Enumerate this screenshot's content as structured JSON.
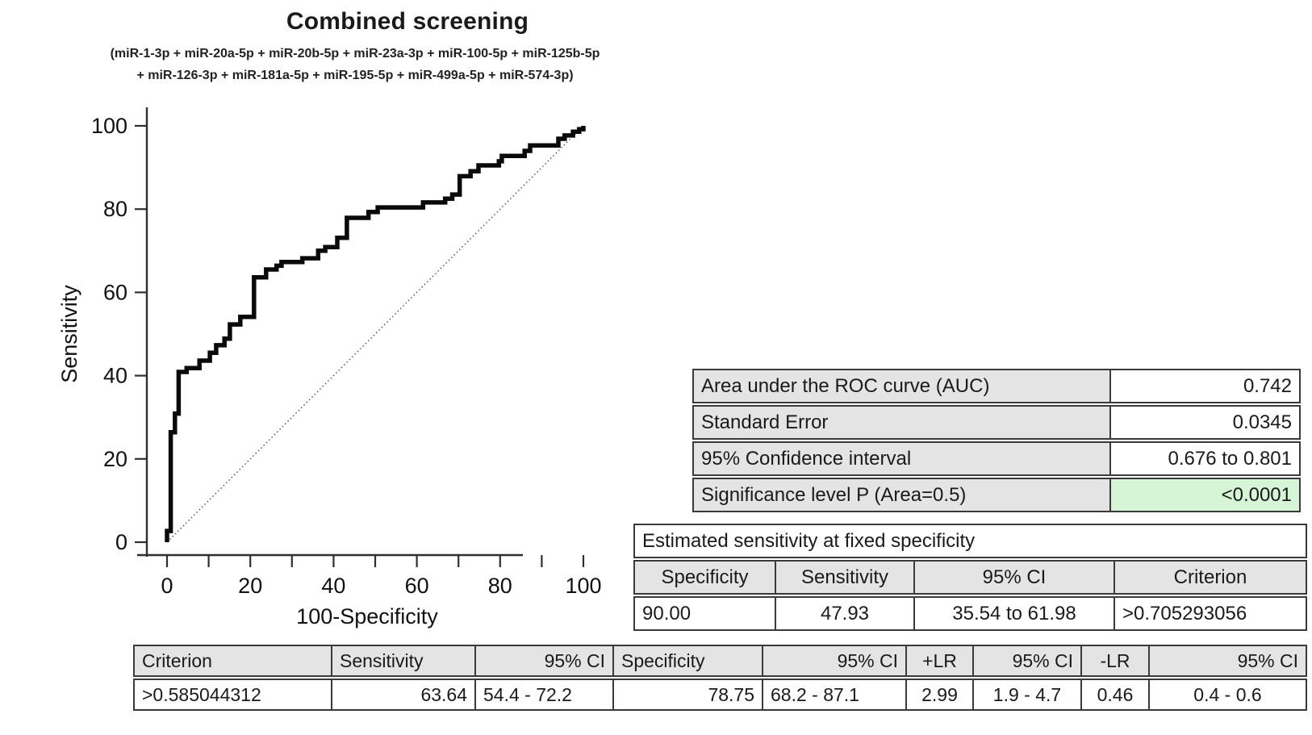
{
  "chart_data": {
    "type": "line",
    "title": "Combined screening",
    "subtitle_line1": "(miR-1-3p + miR-20a-5p + miR-20b-5p + miR-23a-3p + miR-100-5p + miR-125b-5p",
    "subtitle_line2": "+ miR-126-3p + miR-181a-5p + miR-195-5p + miR-499a-5p + miR-574-3p)",
    "xlabel": "100-Specificity",
    "ylabel": "Sensitivity",
    "xlim": [
      0,
      100
    ],
    "ylim": [
      0,
      100
    ],
    "x_major_ticks": [
      0,
      20,
      40,
      60,
      80,
      100
    ],
    "x_minor_tick_step": 10,
    "y_major_ticks": [
      0,
      20,
      40,
      60,
      80,
      100
    ],
    "grid": false,
    "diagonal_reference_line": true,
    "series": [
      {
        "name": "ROC curve (empirical step function)",
        "points": [
          [
            0,
            0
          ],
          [
            0,
            2.7
          ],
          [
            0.9,
            2.7
          ],
          [
            0.9,
            26.4
          ],
          [
            1.9,
            26.4
          ],
          [
            1.9,
            30.9
          ],
          [
            2.8,
            30.9
          ],
          [
            2.8,
            40.9
          ],
          [
            4.7,
            40.9
          ],
          [
            4.7,
            41.8
          ],
          [
            7.8,
            41.8
          ],
          [
            7.8,
            43.6
          ],
          [
            10.3,
            43.6
          ],
          [
            10.3,
            45.5
          ],
          [
            11.8,
            45.5
          ],
          [
            11.8,
            47.3
          ],
          [
            13.8,
            47.3
          ],
          [
            13.8,
            48.9
          ],
          [
            15.1,
            48.9
          ],
          [
            15.1,
            52.3
          ],
          [
            17.6,
            52.3
          ],
          [
            17.6,
            54.1
          ],
          [
            20.9,
            54.1
          ],
          [
            20.9,
            63.6
          ],
          [
            23.8,
            63.6
          ],
          [
            23.8,
            65.5
          ],
          [
            26.3,
            65.5
          ],
          [
            26.3,
            66.4
          ],
          [
            27.5,
            66.4
          ],
          [
            27.5,
            67.3
          ],
          [
            32.5,
            67.3
          ],
          [
            32.5,
            68.2
          ],
          [
            36.3,
            68.2
          ],
          [
            36.3,
            70.0
          ],
          [
            38.0,
            70.0
          ],
          [
            38.0,
            70.9
          ],
          [
            40.9,
            70.9
          ],
          [
            40.9,
            73.1
          ],
          [
            43.2,
            73.1
          ],
          [
            43.2,
            77.9
          ],
          [
            48.4,
            77.9
          ],
          [
            48.4,
            79.3
          ],
          [
            50.6,
            79.3
          ],
          [
            50.6,
            80.4
          ],
          [
            61.5,
            80.4
          ],
          [
            61.5,
            81.6
          ],
          [
            66.8,
            81.6
          ],
          [
            66.8,
            82.5
          ],
          [
            68.5,
            82.5
          ],
          [
            68.5,
            83.5
          ],
          [
            70.3,
            83.5
          ],
          [
            70.3,
            87.9
          ],
          [
            72.9,
            87.9
          ],
          [
            72.9,
            89.1
          ],
          [
            74.8,
            89.1
          ],
          [
            74.8,
            90.5
          ],
          [
            79.7,
            90.5
          ],
          [
            79.7,
            91.5
          ],
          [
            80.4,
            91.5
          ],
          [
            80.4,
            92.8
          ],
          [
            85.9,
            92.8
          ],
          [
            85.9,
            94.0
          ],
          [
            87.2,
            94.0
          ],
          [
            87.2,
            95.3
          ],
          [
            94.0,
            95.3
          ],
          [
            94.0,
            96.9
          ],
          [
            95.5,
            96.9
          ],
          [
            95.5,
            97.7
          ],
          [
            97.5,
            97.7
          ],
          [
            97.5,
            98.6
          ],
          [
            99.0,
            98.6
          ],
          [
            99.0,
            99.2
          ],
          [
            100,
            99.2
          ],
          [
            100,
            100
          ]
        ]
      }
    ]
  },
  "auc_table": {
    "rows": [
      {
        "label": "Area under the ROC curve (AUC)",
        "value": "0.742",
        "highlight": false
      },
      {
        "label": "Standard Error",
        "value": "0.0345",
        "highlight": false
      },
      {
        "label": "95% Confidence interval",
        "value": "0.676 to 0.801",
        "highlight": false
      },
      {
        "label": "Significance level P (Area=0.5)",
        "value": "<0.0001",
        "highlight": true
      }
    ]
  },
  "fixed_specificity_table": {
    "title": "Estimated sensitivity at fixed specificity",
    "headers": [
      "Specificity",
      "Sensitivity",
      "95% CI",
      "Criterion"
    ],
    "rows": [
      [
        "90.00",
        "47.93",
        "35.54 to 61.98",
        ">0.705293056"
      ]
    ]
  },
  "criterion_table": {
    "headers": [
      "Criterion",
      "Sensitivity",
      "95% CI",
      "Specificity",
      "95% CI",
      "+LR",
      "95% CI",
      "-LR",
      "95% CI"
    ],
    "rows": [
      [
        ">0.585044312",
        "63.64",
        "54.4 - 72.2",
        "78.75",
        "68.2 - 87.1",
        "2.99",
        "1.9 - 4.7",
        "0.46",
        "0.4 - 0.6"
      ]
    ]
  },
  "colors": {
    "curve": "#0a0a0a",
    "axis": "#2f2f2f",
    "reference_line": "#444444",
    "table_border": "#3a3a3a",
    "header_gray": "#e4e4e4",
    "highlight_green": "#d6f5d6"
  }
}
